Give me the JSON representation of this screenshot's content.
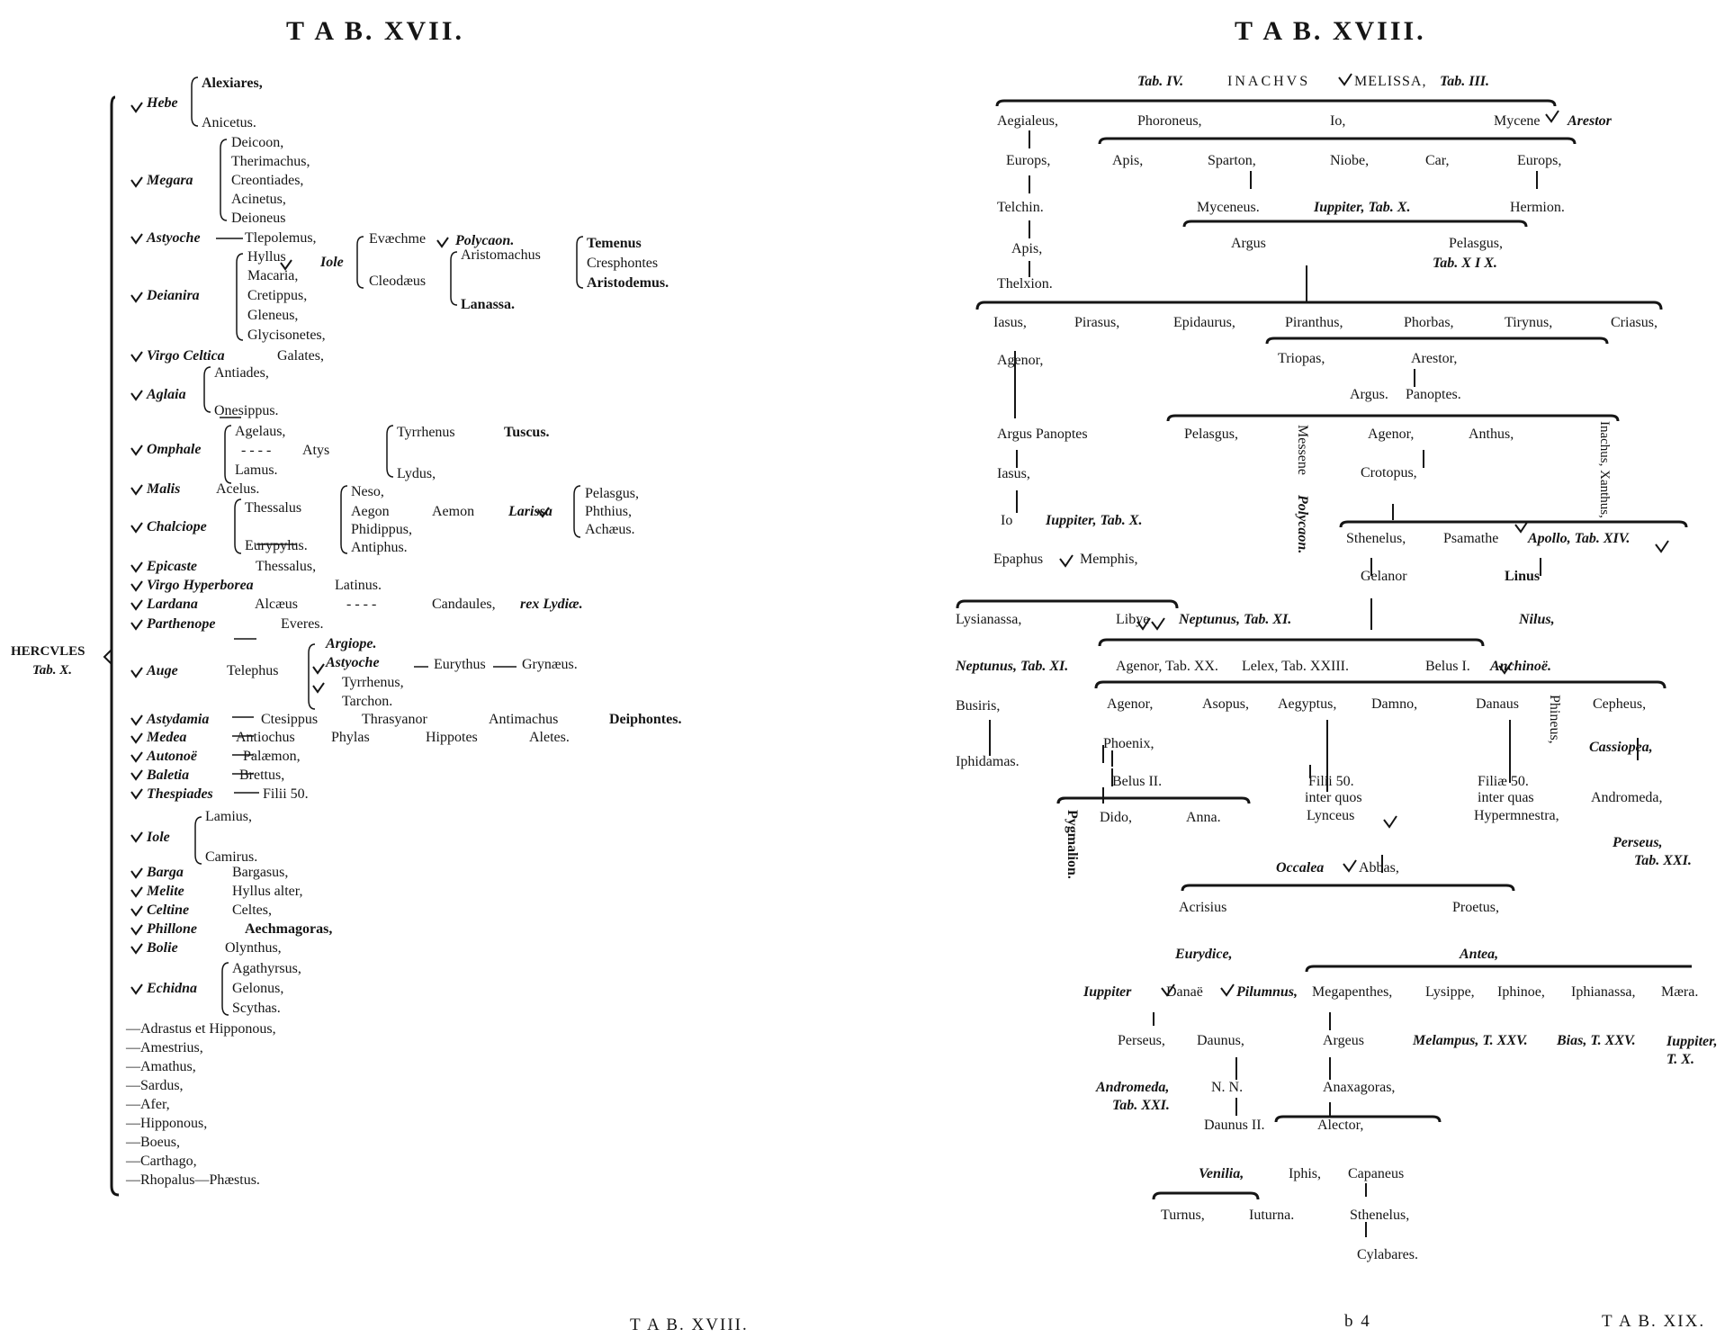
{
  "left": {
    "title": "T A B.  XVII.",
    "root": "HERCVLES",
    "root_ref": "Tab. X.",
    "rows": [
      [
        "Hebe",
        "Alexiares,",
        "Anicetus."
      ],
      [
        "Megara",
        "Deicoon,",
        "Therimachus,",
        "Creontiades,",
        "Acinetus,",
        "Deioneus"
      ],
      [
        "Astyoche",
        "Tlepolemus,"
      ],
      [
        "Deianira",
        "Hyllus",
        "Iole",
        "Evæchme",
        "Polycaon.",
        "Cleodæus",
        "Aristomachus",
        "Lanassa.",
        "Temenus",
        "Cresphontes",
        "Aristodemus.",
        "Macaria,",
        "Cretippus,",
        "Gleneus,",
        "Glycisonetes,"
      ],
      [
        "Virgo Celtica",
        "Galates,"
      ],
      [
        "Aglaia",
        "Antiades,",
        "Onesippus."
      ],
      [
        "Omphale",
        "Agelaus,",
        "Atys",
        "Lamus.",
        "Tyrrhenus",
        "Tuscus.",
        "Lydus,"
      ],
      [
        "Malis",
        "Acelus."
      ],
      [
        "Chalciope",
        "Thessalus",
        "Eurypylus.",
        "Neso,",
        "Aegon",
        "Aemon",
        "Larissa",
        "Phidippus,",
        "Antiphus.",
        "Pelasgus,",
        "Phthius,",
        "Achæus."
      ],
      [
        "Epicaste",
        "Thessalus,"
      ],
      [
        "Virgo Hyperborea",
        "Latinus."
      ],
      [
        "Lardana",
        "Alcæus",
        "Candaules,",
        "rex Lydiæ."
      ],
      [
        "Parthenope",
        "Everes."
      ],
      [
        "Auge",
        "Telephus",
        "Argiope.",
        "Astyoche",
        "Eurythus",
        "Grynæus.",
        "Tyrrhenus,",
        "Tarchon."
      ],
      [
        "Astydamia",
        "Ctesippus",
        "Thrasyanor",
        "Antimachus",
        "Deiphontes."
      ],
      [
        "Medea",
        "Antiochus",
        "Phylas",
        "Hippotes",
        "Aletes."
      ],
      [
        "Autonoë",
        "Palæmon,"
      ],
      [
        "Baletia",
        "Brettus,"
      ],
      [
        "Thespiades",
        "Filii 50."
      ],
      [
        "Iole",
        "Lamius,",
        "Camirus."
      ],
      [
        "Barga",
        "Bargasus,"
      ],
      [
        "Melite",
        "Hyllus alter,"
      ],
      [
        "Celtine",
        "Celtes,"
      ],
      [
        "Phillone",
        "Aechmagoras,"
      ],
      [
        "Bolie",
        "Olynthus,"
      ],
      [
        "Echidna",
        "Agathyrsus,",
        "Gelonus,",
        "Scythas."
      ],
      [
        "Adrastus et Hipponous,"
      ],
      [
        "Amestrius,"
      ],
      [
        "Amathus,"
      ],
      [
        "Sardus,"
      ],
      [
        "Afer,"
      ],
      [
        "Hipponous,"
      ],
      [
        "Boeus,"
      ],
      [
        "Carthago,"
      ],
      [
        "Rhopalus",
        "Phæstus."
      ]
    ]
  },
  "right": {
    "title": "T A B.  XVIII.",
    "top": [
      "Tab. IV.",
      "INACHVS",
      "MELISSA,",
      "Tab. III."
    ],
    "nodes": [
      "Aegialeus,",
      "Phoroneus,",
      "Io,",
      "Mycene",
      "Arestor",
      "Europs,",
      "Apis,",
      "Sparton,",
      "Niobe,",
      "Car,",
      "Europs,",
      "Telchin.",
      "Myceneus.",
      "Iuppiter, Tab. X.",
      "Hermion.",
      "Apis,",
      "Argus",
      "Pelasgus,",
      "Tab. X I X.",
      "Thelxion.",
      "Iasus,",
      "Pirasus,",
      "Epidaurus,",
      "Piranthus,",
      "Phorbas,",
      "Tirynus,",
      "Criasus,",
      "Agenor,",
      "Triopas,",
      "Arestor,",
      "Argus.",
      "Panoptes.",
      "Pelasgus,",
      "Messene",
      "Polycaon.",
      "Agenor,",
      "Anthus,",
      "Inachus, Xanthus,",
      "Argus Panoptes",
      "Crotopus,",
      "Iasus,",
      "Io",
      "Iuppiter, Tab. X.",
      "Sthenelus,",
      "Psamathe",
      "Apollo, Tab. XIV.",
      "Epaphus",
      "Memphis,",
      "Gelanor",
      "Linus",
      "Lysianassa,",
      "Libye",
      "Neptunus, Tab. XI.",
      "Nilus,",
      "Neptunus, Tab. XI.",
      "Agenor, Tab. XX.",
      "Lelex, Tab. XXIII.",
      "Belus I.",
      "Anchinoë.",
      "Busiris,",
      "Agenor,",
      "Asopus,",
      "Aegyptus,",
      "Damno,",
      "Danaus",
      "Phineus,",
      "Cepheus,",
      "Iphidamas.",
      "Phoenix,",
      "Cassiopea,",
      "Belus II.",
      "Filii 50.",
      "inter quos",
      "Lynceus",
      "Filiæ 50.",
      "inter quas",
      "Hypermnestra,",
      "Andromeda,",
      "Pygmalion.",
      "Dido,",
      "Anna.",
      "Perseus,",
      "Tab. XXI.",
      "Occalea",
      "Abbas,",
      "Acrisius",
      "Proetus,",
      "Eurydice,",
      "Antea,",
      "Iuppiter",
      "Danaë",
      "Pilumnus,",
      "Megapenthes,",
      "Lysippe,",
      "Iphinoe,",
      "Iphianassa,",
      "Mæra.",
      "Perseus,",
      "Daunus,",
      "Argeus",
      "Melampus, T. XXV.",
      "Bias, T. XXV.",
      "Iuppiter, T. X.",
      "Andromeda,",
      "Tab. XXI.",
      "N. N.",
      "Anaxagoras,",
      "Daunus II.",
      "Alector,",
      "Venilia,",
      "Iphis,",
      "Capaneus",
      "Turnus,",
      "Iuturna.",
      "Sthenelus,",
      "Cylabares."
    ]
  },
  "footer": {
    "catchword": "T A B. XVIII.",
    "signature": "b 4",
    "right_catchword": "T A B. XIX."
  }
}
